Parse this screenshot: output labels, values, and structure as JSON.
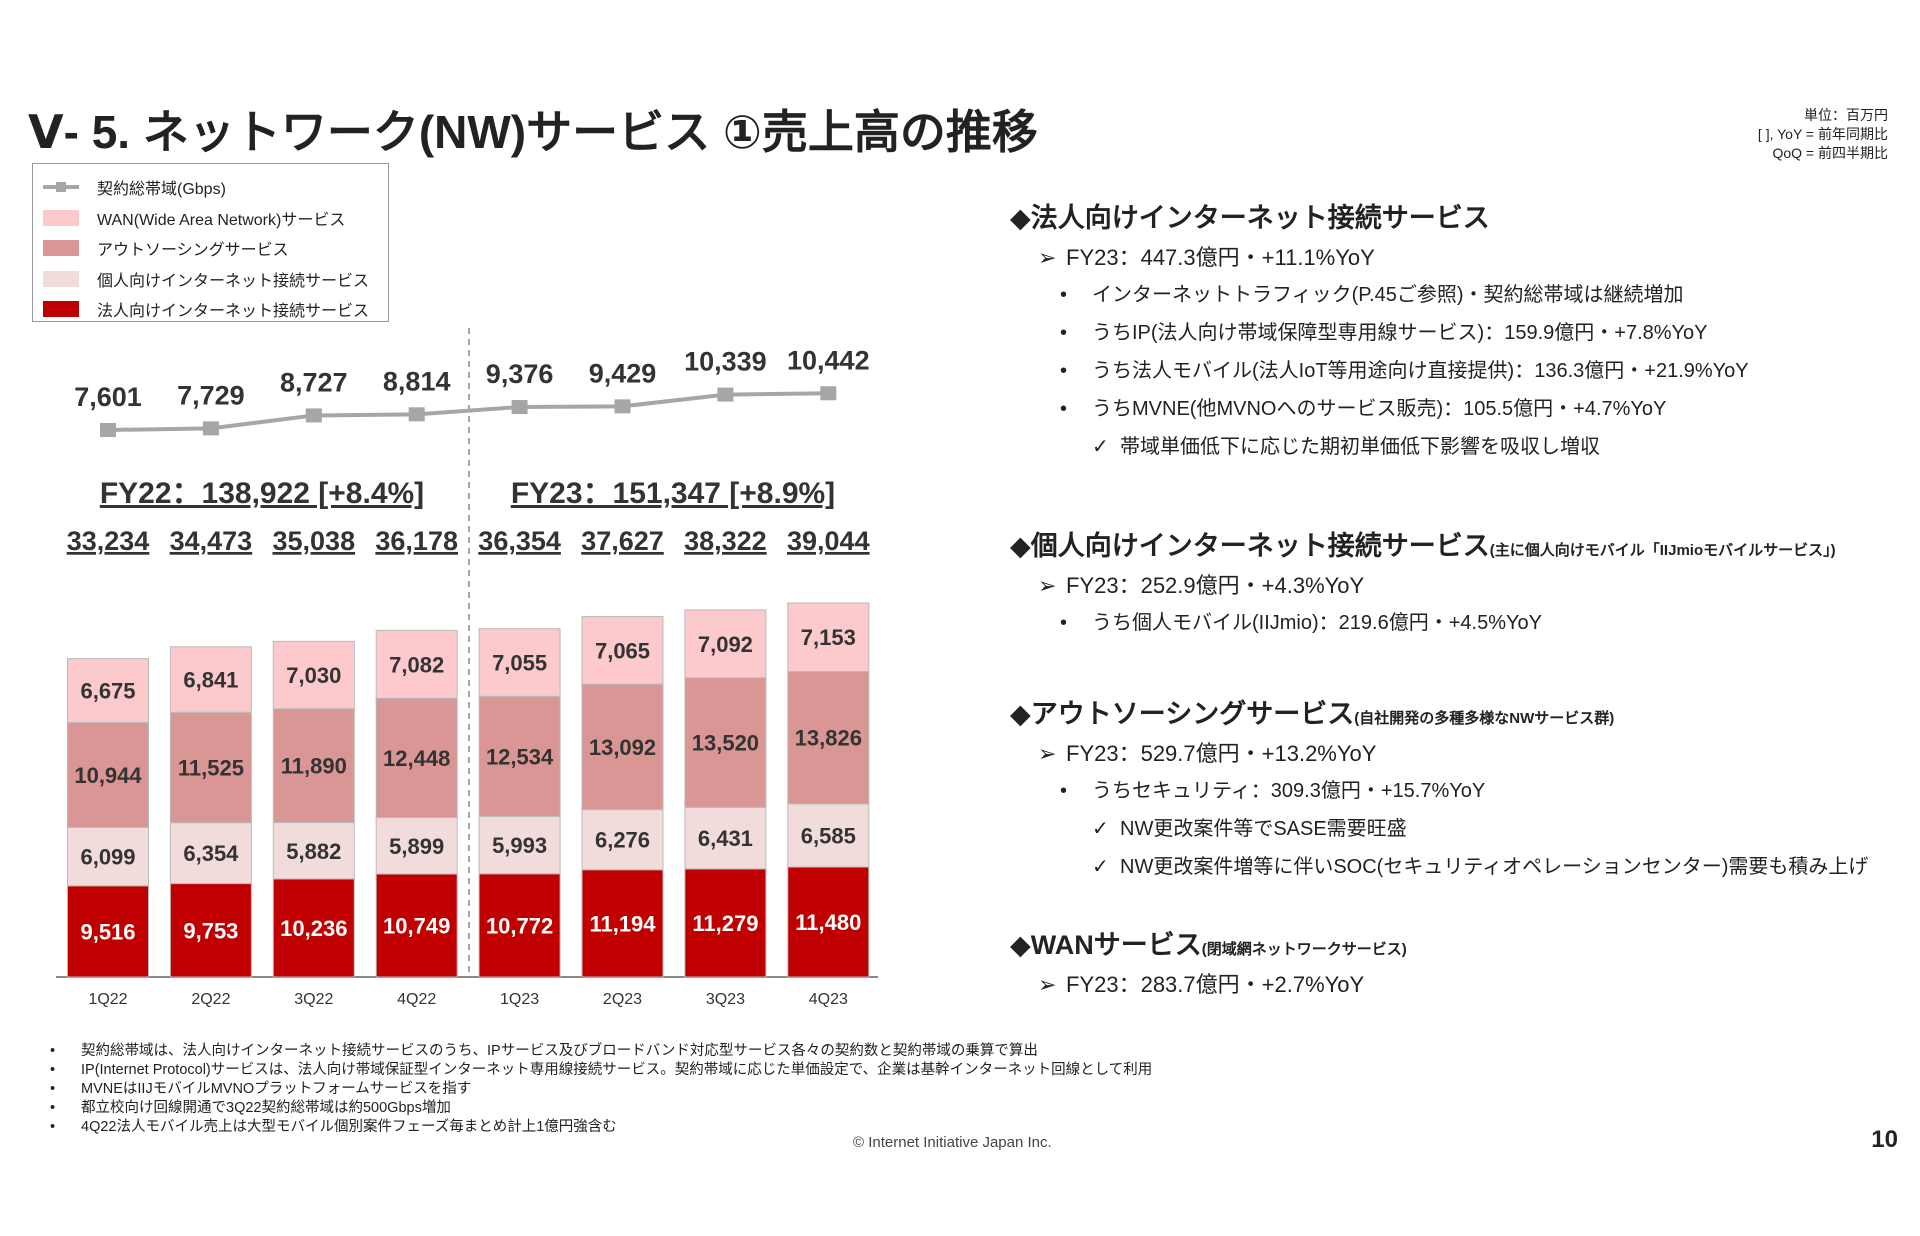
{
  "title": "Ⅴ- 5.  ネットワーク(NW)サービス ①売上高の推移",
  "unit_note": [
    "単位：百万円",
    "[ ], YoY = 前年同期比",
    "QoQ = 前四半期比"
  ],
  "legend": [
    "契約総帯域(Gbps)",
    "WAN(Wide Area Network)サービス",
    "アウトソーシングサービス",
    "個人向けインターネット接続サービス",
    "法人向けインターネット接続サービス"
  ],
  "chart_data": {
    "type": "bar",
    "stacked": true,
    "categories": [
      "1Q22",
      "2Q22",
      "3Q22",
      "4Q22",
      "1Q23",
      "2Q23",
      "3Q23",
      "4Q23"
    ],
    "series": [
      {
        "name": "法人向けインターネット接続サービス",
        "color": "#c00000",
        "values": [
          9516,
          9753,
          10236,
          10749,
          10772,
          11194,
          11279,
          11480
        ]
      },
      {
        "name": "個人向けインターネット接続サービス",
        "color": "#f2dcdb",
        "values": [
          6099,
          6354,
          5882,
          5899,
          5993,
          6276,
          6431,
          6585
        ]
      },
      {
        "name": "アウトソーシングサービス",
        "color": "#d99694",
        "values": [
          10944,
          11525,
          11890,
          12448,
          12534,
          13092,
          13520,
          13826
        ]
      },
      {
        "name": "WAN(Wide Area Network)サービス",
        "color": "#fcc9cc",
        "values": [
          6675,
          6841,
          7030,
          7082,
          7055,
          7065,
          7092,
          7153
        ]
      }
    ],
    "labels": [
      [
        "9,516",
        "9,753",
        "10,236",
        "10,749",
        "10,772",
        "11,194",
        "11,279",
        "11,480"
      ],
      [
        "6,099",
        "6,354",
        "5,882",
        "5,899",
        "5,993",
        "6,276",
        "6,431",
        "6,585"
      ],
      [
        "10,944",
        "11,525",
        "11,890",
        "12,448",
        "12,534",
        "13,092",
        "13,520",
        "13,826"
      ],
      [
        "6,675",
        "6,841",
        "7,030",
        "7,082",
        "7,055",
        "7,065",
        "7,092",
        "7,153"
      ]
    ],
    "totals": [
      "33,234",
      "34,473",
      "35,038",
      "36,178",
      "36,354",
      "37,627",
      "38,322",
      "39,044"
    ],
    "line": {
      "name": "契約総帯域(Gbps)",
      "color": "#a6a6a6",
      "values": [
        7601,
        7729,
        8727,
        8814,
        9376,
        9429,
        10339,
        10442
      ],
      "labels": [
        "7,601",
        "7,729",
        "8,727",
        "8,814",
        "9,376",
        "9,429",
        "10,339",
        "10,442"
      ]
    },
    "fy_summary": [
      "FY22：138,922 [+8.4%]",
      "FY23：151,347 [+8.9%]"
    ]
  },
  "right": [
    {
      "head": "法人向けインターネット接続サービス",
      "sub": "",
      "items": [
        {
          "lvl": 1,
          "t": "FY23：447.3億円・+11.1%YoY"
        },
        {
          "lvl": 2,
          "t": "インターネットトラフィック(P.45ご参照)・契約総帯域は継続増加"
        },
        {
          "lvl": 2,
          "t": "うちIP(法人向け帯域保障型専用線サービス)：159.9億円・+7.8%YoY"
        },
        {
          "lvl": 2,
          "t": "うち法人モバイル(法人IoT等用途向け直接提供)：136.3億円・+21.9%YoY"
        },
        {
          "lvl": 2,
          "t": "うちMVNE(他MVNOへのサービス販売)：105.5億円・+4.7%YoY"
        },
        {
          "lvl": 3,
          "t": "帯域単価低下に応じた期初単価低下影響を吸収し増収"
        }
      ]
    },
    {
      "head": "個人向けインターネット接続サービス",
      "sub": "(主に個人向けモバイル「IIJmioモバイルサービス」)",
      "items": [
        {
          "lvl": 1,
          "t": "FY23：252.9億円・+4.3%YoY"
        },
        {
          "lvl": 2,
          "t": "うち個人モバイル(IIJmio)：219.6億円・+4.5%YoY"
        }
      ]
    },
    {
      "head": "アウトソーシングサービス",
      "sub": "(自社開発の多種多様なNWサービス群)",
      "items": [
        {
          "lvl": 1,
          "t": "FY23：529.7億円・+13.2%YoY"
        },
        {
          "lvl": 2,
          "t": "うちセキュリティ：309.3億円・+15.7%YoY"
        },
        {
          "lvl": 3,
          "t": "NW更改案件等でSASE需要旺盛"
        },
        {
          "lvl": 3,
          "t": "NW更改案件増等に伴いSOC(セキュリティオペレーションセンター)需要も積み上げ"
        }
      ]
    },
    {
      "head": "WANサービス",
      "sub": "(閉域網ネットワークサービス)",
      "items": [
        {
          "lvl": 1,
          "t": "FY23：283.7億円・+2.7%YoY"
        }
      ]
    }
  ],
  "footnotes": [
    "契約総帯域は、法人向けインターネット接続サービスのうち、IPサービス及びブロードバンド対応型サービス各々の契約数と契約帯域の乗算で算出",
    "IP(Internet Protocol)サービスは、法人向け帯域保証型インターネット専用線接続サービス。契約帯域に応じた単価設定で、企業は基幹インターネット回線として利用",
    "MVNEはIIJモバイルMVNOプラットフォームサービスを指す",
    "都立校向け回線開通で3Q22契約総帯域は約500Gbps増加",
    "4Q22法人モバイル売上は大型モバイル個別案件フェーズ毎まとめ計上1億円強含む"
  ],
  "copyright": "© Internet Initiative Japan Inc.",
  "page_number": "10"
}
